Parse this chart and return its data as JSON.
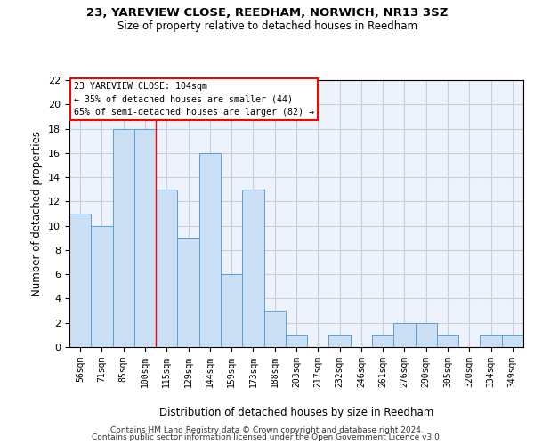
{
  "title1": "23, YAREVIEW CLOSE, REEDHAM, NORWICH, NR13 3SZ",
  "title2": "Size of property relative to detached houses in Reedham",
  "xlabel": "Distribution of detached houses by size in Reedham",
  "ylabel": "Number of detached properties",
  "categories": [
    "56sqm",
    "71sqm",
    "85sqm",
    "100sqm",
    "115sqm",
    "129sqm",
    "144sqm",
    "159sqm",
    "173sqm",
    "188sqm",
    "203sqm",
    "217sqm",
    "232sqm",
    "246sqm",
    "261sqm",
    "276sqm",
    "290sqm",
    "305sqm",
    "320sqm",
    "334sqm",
    "349sqm"
  ],
  "values": [
    11,
    10,
    18,
    18,
    13,
    9,
    16,
    6,
    13,
    3,
    1,
    0,
    1,
    0,
    1,
    2,
    2,
    1,
    0,
    1,
    1
  ],
  "bar_color": "#cce0f5",
  "bar_edge_color": "#5a9fd4",
  "red_line_x": 3.5,
  "ylim": [
    0,
    22
  ],
  "yticks": [
    0,
    2,
    4,
    6,
    8,
    10,
    12,
    14,
    16,
    18,
    20,
    22
  ],
  "annotation_box_text": "23 YAREVIEW CLOSE: 104sqm\n← 35% of detached houses are smaller (44)\n65% of semi-detached houses are larger (82) →",
  "footer_line1": "Contains HM Land Registry data © Crown copyright and database right 2024.",
  "footer_line2": "Contains public sector information licensed under the Open Government Licence v3.0.",
  "background_color": "#eef2fb",
  "grid_color": "#c5cde8",
  "figwidth": 6.0,
  "figheight": 5.0,
  "dpi": 100
}
